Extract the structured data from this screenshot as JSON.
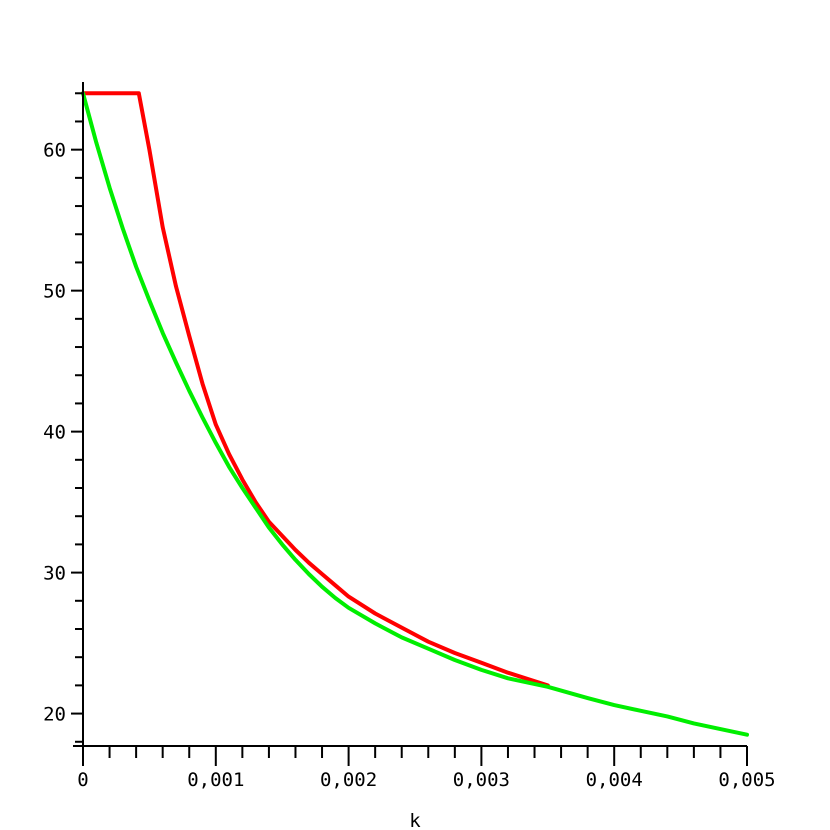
{
  "chart_data": {
    "type": "line",
    "title": "",
    "xlabel": "k",
    "ylabel": "",
    "xlim": [
      0,
      0.005
    ],
    "ylim": [
      17.7,
      64.8
    ],
    "grid": false,
    "x_ticks": [
      {
        "value": 0,
        "label": "0"
      },
      {
        "value": 0.001,
        "label": "0,001"
      },
      {
        "value": 0.002,
        "label": "0,002"
      },
      {
        "value": 0.003,
        "label": "0,003"
      },
      {
        "value": 0.004,
        "label": "0,004"
      },
      {
        "value": 0.005,
        "label": "0,005"
      }
    ],
    "y_ticks": [
      {
        "value": 20,
        "label": "20"
      },
      {
        "value": 30,
        "label": "30"
      },
      {
        "value": 40,
        "label": "40"
      },
      {
        "value": 50,
        "label": "50"
      },
      {
        "value": 60,
        "label": "60"
      }
    ],
    "series": [
      {
        "color": "#ff0000",
        "points": [
          [
            0,
            64
          ],
          [
            0.0004,
            64
          ],
          [
            0.00042,
            64
          ],
          [
            0.0005,
            60.0
          ],
          [
            0.0006,
            54.5
          ],
          [
            0.0007,
            50.3
          ],
          [
            0.0008,
            46.8
          ],
          [
            0.0009,
            43.4
          ],
          [
            0.001,
            40.5
          ],
          [
            0.0011,
            38.4
          ],
          [
            0.0012,
            36.6
          ],
          [
            0.0013,
            35.0
          ],
          [
            0.0014,
            33.6
          ],
          [
            0.0015,
            32.6
          ],
          [
            0.0016,
            31.6
          ],
          [
            0.0017,
            30.7
          ],
          [
            0.0018,
            29.9
          ],
          [
            0.0019,
            29.1
          ],
          [
            0.002,
            28.3
          ],
          [
            0.0022,
            27.1
          ],
          [
            0.0024,
            26.1
          ],
          [
            0.0026,
            25.1
          ],
          [
            0.0028,
            24.3
          ],
          [
            0.003,
            23.6
          ],
          [
            0.0032,
            22.9
          ],
          [
            0.0034,
            22.3
          ],
          [
            0.0035,
            22.0
          ]
        ]
      },
      {
        "color": "#00ee00",
        "points": [
          [
            0,
            64
          ],
          [
            0.0001,
            60.5
          ],
          [
            0.0002,
            57.3
          ],
          [
            0.0003,
            54.4
          ],
          [
            0.0004,
            51.7
          ],
          [
            0.0005,
            49.3
          ],
          [
            0.0006,
            47.0
          ],
          [
            0.0007,
            44.9
          ],
          [
            0.0008,
            42.9
          ],
          [
            0.0009,
            41.0
          ],
          [
            0.001,
            39.2
          ],
          [
            0.0011,
            37.5
          ],
          [
            0.0012,
            36.0
          ],
          [
            0.0013,
            34.6
          ],
          [
            0.0014,
            33.2
          ],
          [
            0.0015,
            32.0
          ],
          [
            0.0016,
            30.9
          ],
          [
            0.0017,
            29.9
          ],
          [
            0.0018,
            29.0
          ],
          [
            0.0019,
            28.2
          ],
          [
            0.002,
            27.5
          ],
          [
            0.0022,
            26.4
          ],
          [
            0.0024,
            25.4
          ],
          [
            0.0026,
            24.6
          ],
          [
            0.0028,
            23.8
          ],
          [
            0.003,
            23.1
          ],
          [
            0.0032,
            22.5
          ],
          [
            0.0035,
            21.9
          ],
          [
            0.0038,
            21.1
          ],
          [
            0.004,
            20.6
          ],
          [
            0.0042,
            20.2
          ],
          [
            0.0044,
            19.8
          ],
          [
            0.0046,
            19.3
          ],
          [
            0.0048,
            18.9
          ],
          [
            0.005,
            18.5
          ]
        ]
      }
    ]
  }
}
